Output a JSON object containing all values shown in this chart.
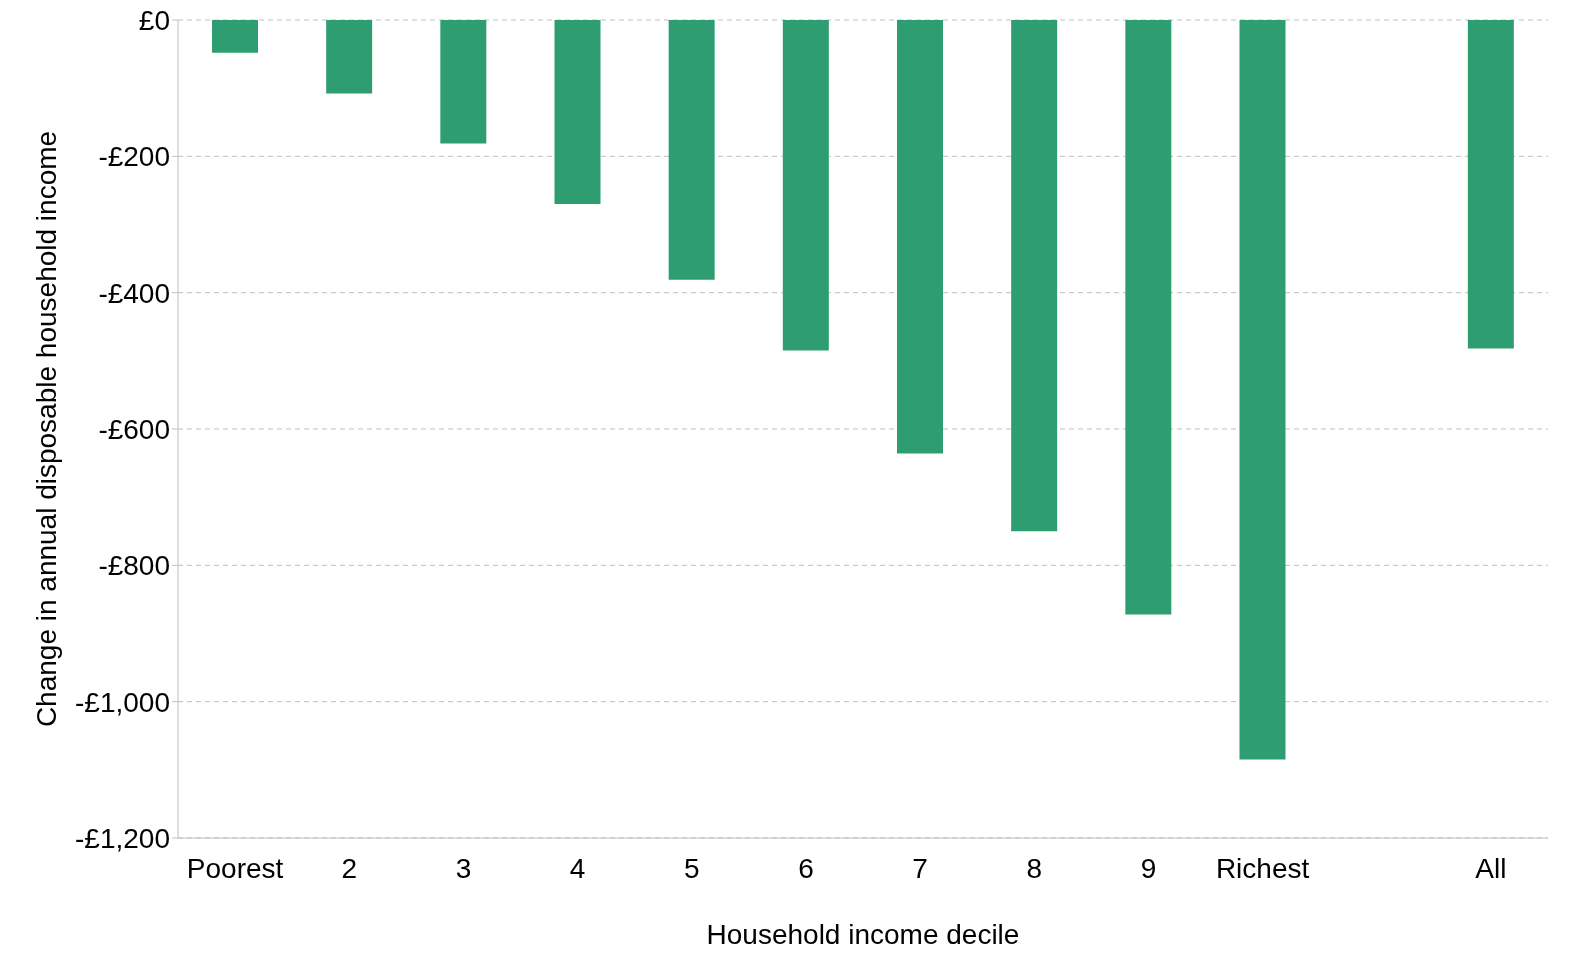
{
  "chart_data": {
    "type": "bar",
    "xlabel": "Household income decile",
    "ylabel": "Change in annual disposable household income",
    "categories": [
      "Poorest",
      "2",
      "3",
      "4",
      "5",
      "6",
      "7",
      "8",
      "9",
      "Richest",
      null,
      "All"
    ],
    "values": [
      -48,
      -108,
      -181,
      -270,
      -381,
      -485,
      -636,
      -750,
      -872,
      -1085,
      null,
      -482
    ],
    "color": "#2e9e72",
    "ylim": [
      -1200,
      0
    ],
    "yticks": [
      {
        "value": 0,
        "label": "£0"
      },
      {
        "value": -200,
        "label": "-£200"
      },
      {
        "value": -400,
        "label": "-£400"
      },
      {
        "value": -600,
        "label": "-£600"
      },
      {
        "value": -800,
        "label": "-£800"
      },
      {
        "value": -1000,
        "label": "-£1,000"
      },
      {
        "value": -1200,
        "label": "-£1,200"
      }
    ],
    "grid": "y",
    "legend": false
  }
}
